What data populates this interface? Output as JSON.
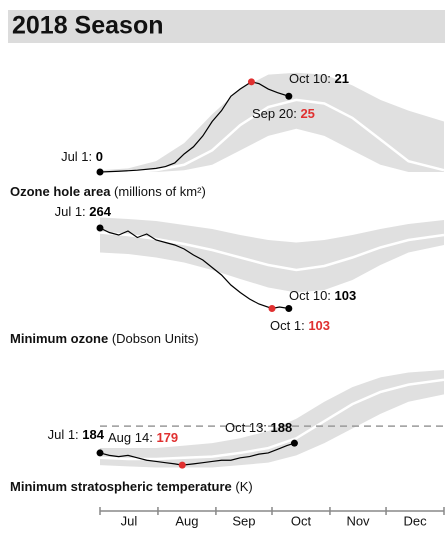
{
  "title": "2018 Season",
  "chart_data": [
    {
      "type": "line",
      "title": "Ozone hole area",
      "subtitle": "(millions of km²)",
      "xlim": [
        0,
        184
      ],
      "ylim": [
        0,
        28
      ],
      "x": [
        0,
        10,
        20,
        30,
        35,
        40,
        45,
        50,
        55,
        60,
        65,
        70,
        75,
        81,
        85,
        90,
        95,
        101
      ],
      "series": [
        {
          "color": "#000000",
          "values": [
            0,
            0.2,
            0.5,
            1,
            1.5,
            2.5,
            5,
            7,
            10,
            14,
            17,
            21,
            23,
            25,
            24.5,
            23,
            22,
            21
          ]
        }
      ],
      "band": {
        "x": [
          0,
          15,
          30,
          45,
          60,
          75,
          90,
          105,
          120,
          135,
          150,
          165,
          184
        ],
        "low": [
          0,
          0,
          0,
          0.5,
          2,
          6,
          10,
          12,
          10,
          6,
          2,
          0,
          0
        ],
        "high": [
          0.5,
          1,
          3,
          8,
          16,
          23,
          27,
          27.5,
          27,
          24,
          20,
          17,
          14
        ],
        "median": [
          0,
          0,
          0.5,
          2,
          6,
          13,
          18,
          20,
          19,
          15,
          9,
          3,
          0.5
        ],
        "color": "#e0e0e0",
        "median_color": "#ffffff"
      },
      "annotations": [
        {
          "label": "Jul 1:",
          "value": 0,
          "x": 0,
          "color": "#000000"
        },
        {
          "label": "Oct 10:",
          "value": 21,
          "x": 101,
          "color": "#000000"
        },
        {
          "label": "Sep 20:",
          "value": 25,
          "x": 81,
          "color": "#e03030"
        }
      ]
    },
    {
      "type": "line",
      "title": "Minimum ozone",
      "subtitle": "(Dobson Units)",
      "xlim": [
        0,
        184
      ],
      "ylim": [
        80,
        290
      ],
      "x": [
        0,
        5,
        10,
        15,
        20,
        25,
        30,
        35,
        40,
        45,
        50,
        55,
        60,
        65,
        70,
        75,
        80,
        85,
        92,
        96,
        101
      ],
      "series": [
        {
          "color": "#000000",
          "values": [
            264,
            255,
            250,
            258,
            245,
            252,
            240,
            235,
            230,
            222,
            210,
            200,
            185,
            170,
            150,
            135,
            122,
            112,
            103,
            106,
            103
          ]
        }
      ],
      "band": {
        "x": [
          0,
          15,
          30,
          45,
          60,
          75,
          90,
          105,
          120,
          135,
          150,
          165,
          184
        ],
        "low": [
          215,
          212,
          205,
          195,
          180,
          162,
          145,
          135,
          140,
          160,
          190,
          215,
          230
        ],
        "high": [
          285,
          282,
          278,
          270,
          262,
          250,
          240,
          235,
          240,
          250,
          262,
          272,
          280
        ],
        "median": [
          255,
          250,
          242,
          232,
          220,
          205,
          190,
          180,
          188,
          205,
          225,
          240,
          250
        ],
        "color": "#e0e0e0",
        "median_color": "#ffffff"
      },
      "annotations": [
        {
          "label": "Jul 1:",
          "value": 264,
          "x": 0,
          "color": "#000000"
        },
        {
          "label": "Oct 10:",
          "value": 103,
          "x": 101,
          "color": "#000000"
        },
        {
          "label": "Oct 1:",
          "value": 103,
          "x": 92,
          "color": "#e03030"
        }
      ]
    },
    {
      "type": "line",
      "title": "Minimum stratospheric temperature",
      "subtitle": "(K)",
      "xlim": [
        0,
        184
      ],
      "ylim": [
        177,
        218
      ],
      "hline": 195,
      "xticks": [
        {
          "value": 0,
          "label": "Jul"
        },
        {
          "value": 31,
          "label": "Aug"
        },
        {
          "value": 62,
          "label": "Sep"
        },
        {
          "value": 92,
          "label": "Oct"
        },
        {
          "value": 123,
          "label": "Nov"
        },
        {
          "value": 153,
          "label": "Dec"
        }
      ],
      "x": [
        0,
        5,
        10,
        15,
        20,
        25,
        30,
        35,
        40,
        44,
        50,
        55,
        60,
        65,
        70,
        75,
        80,
        85,
        90,
        95,
        100,
        104
      ],
      "series": [
        {
          "color": "#000000",
          "values": [
            184,
            183,
            182.5,
            183,
            182,
            181,
            180.5,
            180,
            179.5,
            179,
            179.5,
            180,
            180.5,
            181,
            181,
            182,
            182.5,
            183.5,
            184,
            185.5,
            187,
            188
          ]
        }
      ],
      "band": {
        "x": [
          0,
          15,
          30,
          45,
          60,
          75,
          90,
          105,
          120,
          135,
          150,
          165,
          184
        ],
        "low": [
          179,
          178.5,
          178,
          178,
          178,
          179,
          180,
          183,
          188,
          194,
          200,
          205,
          208
        ],
        "high": [
          186,
          186,
          186,
          187,
          188,
          190,
          193,
          198,
          205,
          211,
          215,
          217,
          218
        ],
        "median": [
          182,
          181.5,
          181.5,
          182,
          182.5,
          184,
          186,
          190,
          197,
          204,
          209,
          212,
          214
        ],
        "color": "#e0e0e0",
        "median_color": "#ffffff"
      },
      "annotations": [
        {
          "label": "Jul 1:",
          "value": 184,
          "x": 0,
          "color": "#000000"
        },
        {
          "label": "Aug 14:",
          "value": 179,
          "x": 44,
          "color": "#e03030"
        },
        {
          "label": "Oct 13:",
          "value": 188,
          "x": 104,
          "color": "#000000"
        }
      ]
    }
  ]
}
